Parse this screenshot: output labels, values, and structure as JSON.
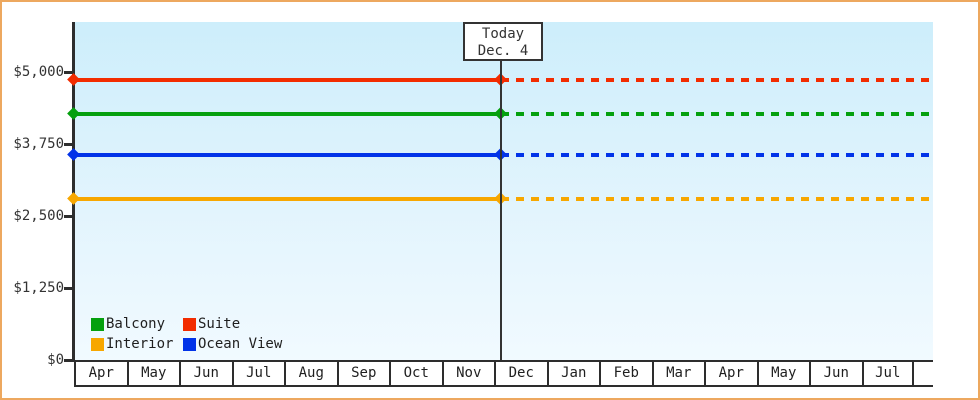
{
  "chart_data": {
    "type": "line",
    "title": "",
    "description": "Cruise cabin price history/forecast by cabin type; solid lines before today, dashed projected lines after today",
    "y_axis": {
      "min": 0,
      "max": 5000,
      "tick_labels": [
        "$5,000",
        "$3,750",
        "$2,500",
        "$1,250",
        "$0"
      ],
      "tick_values": [
        5000,
        3750,
        2500,
        1250,
        0
      ]
    },
    "x_axis": {
      "months": [
        "Apr",
        "May",
        "Jun",
        "Jul",
        "Aug",
        "Sep",
        "Oct",
        "Nov",
        "Dec",
        "Jan",
        "Feb",
        "Mar",
        "Apr",
        "May",
        "Jun",
        "Jul"
      ]
    },
    "today": {
      "line1": "Today",
      "line2": "Dec. 4",
      "month_index": 8,
      "day_fraction": 0.13
    },
    "series": [
      {
        "name": "Balcony",
        "color": "#05a00e",
        "value": 4270
      },
      {
        "name": "Suite",
        "color": "#f22c00",
        "value": 4860
      },
      {
        "name": "Interior",
        "color": "#f7a700",
        "value": 2800
      },
      {
        "name": "Ocean View",
        "color": "#0233e8",
        "value": 3560
      }
    ],
    "line_style": {
      "before_today": "solid",
      "after_today": "dashed"
    },
    "legend_position": "bottom-left-inside"
  },
  "colors": {
    "frame_border": "#eda85f",
    "plot_gradient_top": "#cdeefb",
    "plot_gradient_bottom": "#f1faff",
    "axis": "#2d2d2d",
    "text": "#222222"
  }
}
